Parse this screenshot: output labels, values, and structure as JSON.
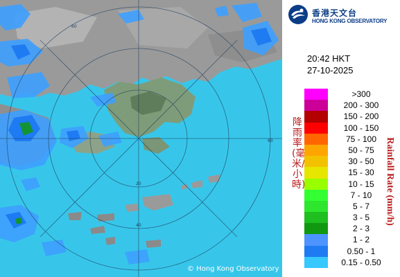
{
  "map": {
    "range_ring_labels": [
      "60",
      "40",
      "20"
    ],
    "copyright": "© Hong Kong Observatory"
  },
  "logo": {
    "name_zh": "香港天文台",
    "name_en": "HONG KONG OBSERVATORY",
    "emblem_icon": "hko-emblem-icon"
  },
  "timestamp": {
    "time": "20:42 HKT",
    "date": "27-10-2025"
  },
  "legend": {
    "title_zh": "降雨率(毫米/小時)",
    "title_en": "Rainfall Rate (mm/h)",
    "items": [
      {
        "label": ">300",
        "color": "#ff00ff"
      },
      {
        "label": "200 - 300",
        "color": "#cc0099"
      },
      {
        "label": "150 - 200",
        "color": "#b30000"
      },
      {
        "label": "100 - 150",
        "color": "#ff0000"
      },
      {
        "label": "75 - 100",
        "color": "#ff6600"
      },
      {
        "label": "50 - 75",
        "color": "#ffa500"
      },
      {
        "label": "30 - 50",
        "color": "#f2c200"
      },
      {
        "label": "15 - 30",
        "color": "#e6e600"
      },
      {
        "label": "10 - 15",
        "color": "#99ff00"
      },
      {
        "label": "7 - 10",
        "color": "#33ff33"
      },
      {
        "label": "5 - 7",
        "color": "#2ee62e"
      },
      {
        "label": "3 - 5",
        "color": "#1fbf1f"
      },
      {
        "label": "2 - 3",
        "color": "#109910"
      },
      {
        "label": "1 - 2",
        "color": "#4d94ff"
      },
      {
        "label": "0.50 - 1",
        "color": "#1f7bf2"
      },
      {
        "label": "0.15 - 0.50",
        "color": "#36c8ff"
      }
    ]
  }
}
